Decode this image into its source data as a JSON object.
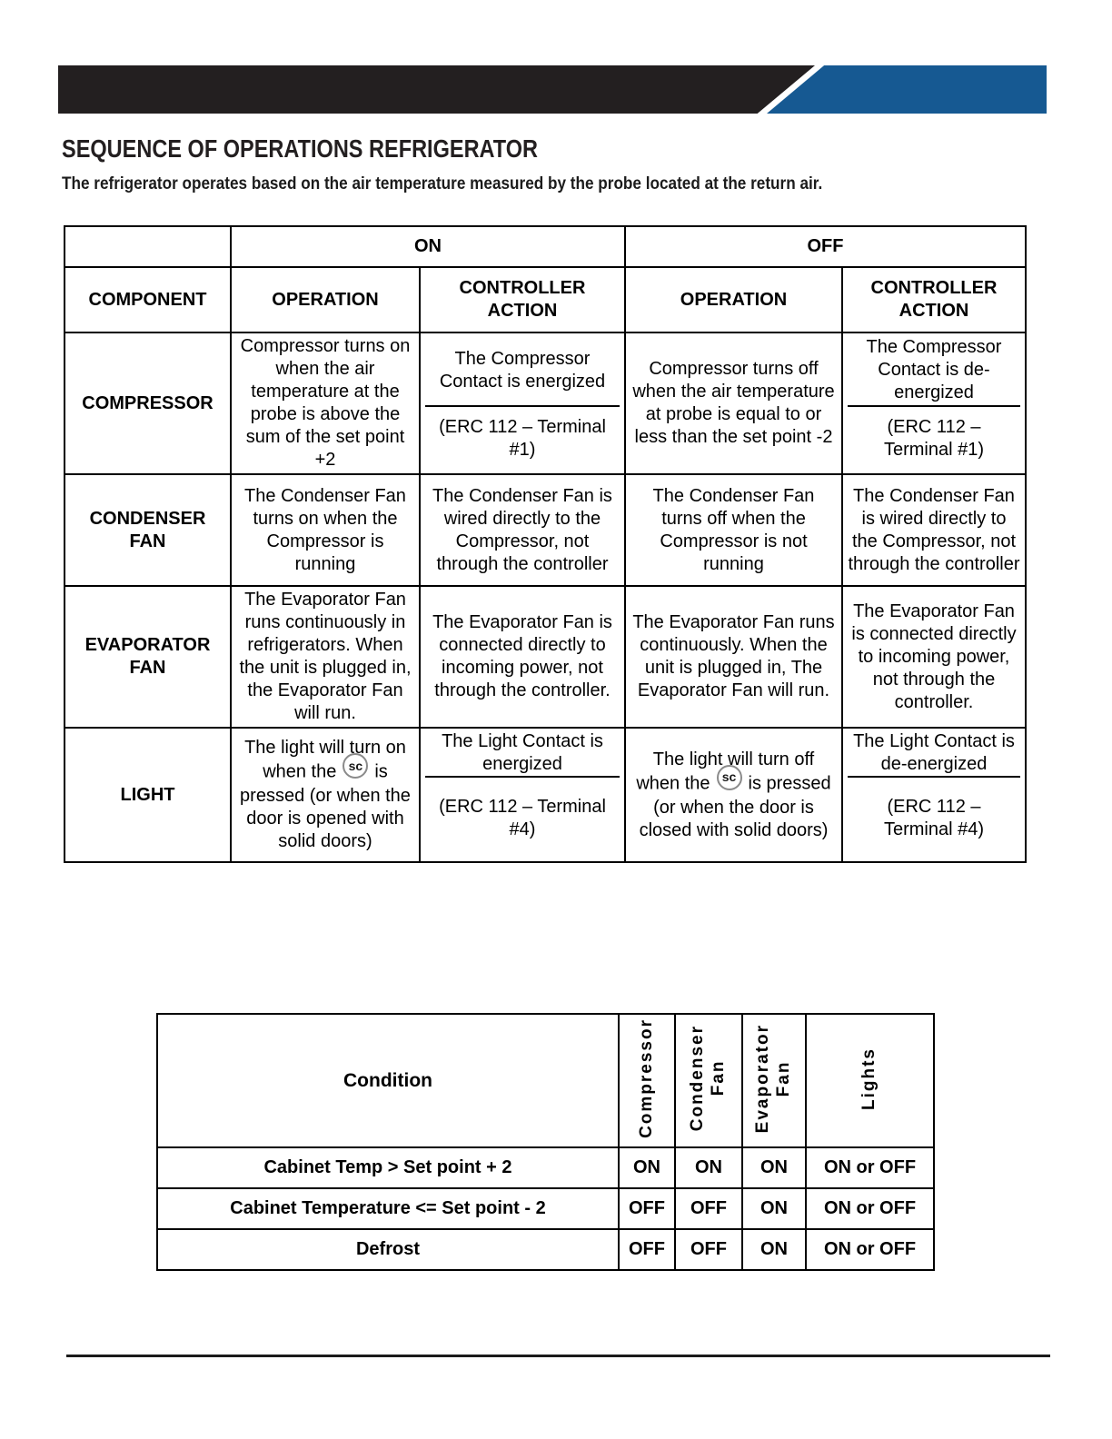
{
  "page": {
    "title": "SEQUENCE OF OPERATIONS REFRIGERATOR",
    "subtitle": "The refrigerator operates based on the air temperature measured by the probe located at the return air."
  },
  "colors": {
    "header_bar_black": "#231f20",
    "header_bar_blue": "#165992",
    "text": "#000000"
  },
  "icons": {
    "sc_label": "sc"
  },
  "ops": {
    "group_on": "ON",
    "group_off": "OFF",
    "head_component": "COMPONENT",
    "head_operation": "OPERATION",
    "head_controller_action": "CONTROLLER ACTION",
    "rows": [
      {
        "component": "COMPRESSOR",
        "on_operation": "Compressor turns on when the air temperature at the probe is above the sum of the set point +2",
        "on_action_top": "The Compressor Contact is energized",
        "on_action_bottom": "(ERC 112 – Terminal #1)",
        "off_operation": "Compressor turns off when the air temperature at probe is equal to or less than the set point -2",
        "off_action_top": "The Compressor Contact is de-energized",
        "off_action_bottom": "(ERC 112 – Terminal #1)"
      },
      {
        "component": "CONDENSER FAN",
        "on_operation": "The Condenser Fan turns on  when the Compressor is running",
        "on_action": "The Condenser Fan is wired directly to the Compressor, not through the controller",
        "off_operation": "The Condenser Fan turns off when the Compressor is not running",
        "off_action": "The Condenser Fan is wired directly to the Compressor, not through the controller"
      },
      {
        "component": "EVAPORATOR FAN",
        "on_operation": "The Evaporator Fan runs continuously in refrigerators.  When the unit is plugged in, the Evaporator Fan will run.",
        "on_action": "The Evaporator Fan is connected directly to incoming power, not through the controller.",
        "off_operation": "The Evaporator Fan runs continuously. When the unit is plugged in, The Evaporator Fan will run.",
        "off_action": "The Evaporator Fan is connected directly to incoming power, not through the controller."
      },
      {
        "component": "LIGHT",
        "on_op_pre": "The light will turn on when the",
        "on_op_post": "is pressed (or when the door is opened with solid doors)",
        "on_action_top": "The Light Contact is energized",
        "on_action_bottom": "(ERC 112 – Terminal #4)",
        "off_op_pre": "The light will turn off when the",
        "off_op_post": "is pressed (or when the door is closed with solid doors)",
        "off_action_top": "The Light Contact is de-energized",
        "off_action_bottom": "(ERC 112 – Terminal #4)"
      }
    ]
  },
  "cond": {
    "head_condition": "Condition",
    "columns": [
      "Compressor",
      "Condenser\nFan",
      "Evaporator\nFan",
      "Lights"
    ],
    "rows": [
      {
        "condition": "Cabinet Temp > Set point + 2",
        "values": [
          "ON",
          "ON",
          "ON",
          "ON or OFF"
        ]
      },
      {
        "condition": "Cabinet Temperature <= Set point - 2",
        "values": [
          "OFF",
          "OFF",
          "ON",
          "ON or OFF"
        ]
      },
      {
        "condition": "Defrost",
        "values": [
          "OFF",
          "OFF",
          "ON",
          "ON or OFF"
        ]
      }
    ]
  }
}
